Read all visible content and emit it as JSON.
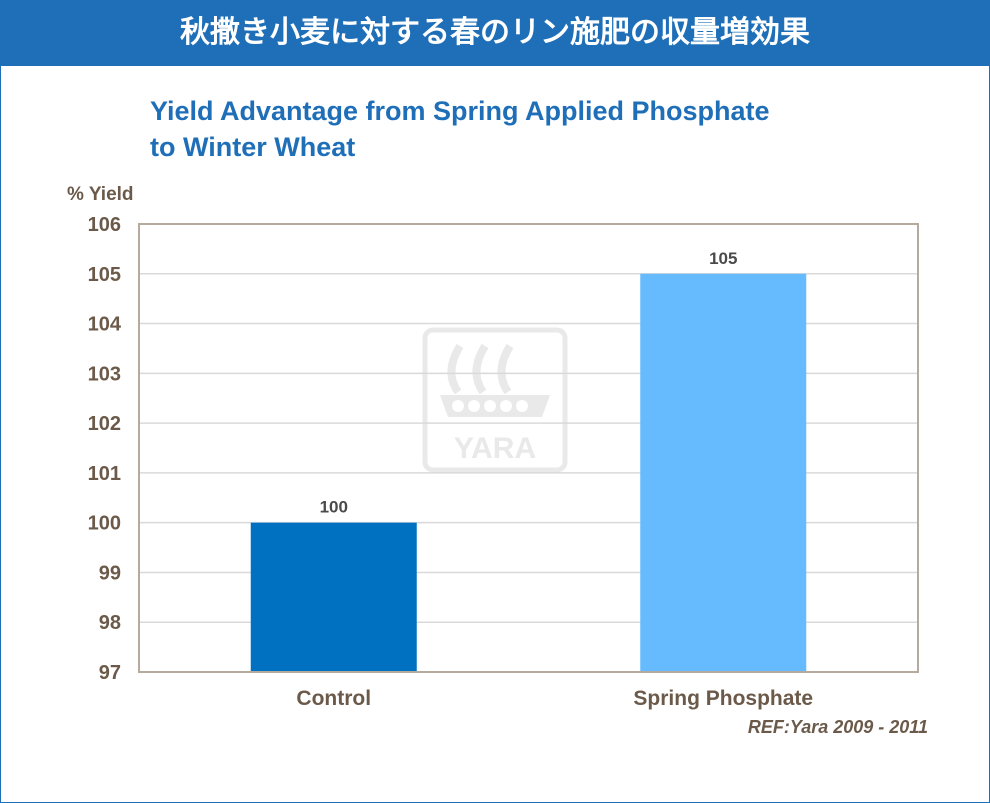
{
  "header": {
    "title": "秋撒き小麦に対する春のリン施肥の収量増効果"
  },
  "chart_data": {
    "type": "bar",
    "title": [
      "Yield Advantage from Spring Applied Phosphate",
      "to Winter Wheat"
    ],
    "ylabel": "% Yield",
    "xlabel": "",
    "categories": [
      "Control",
      "Spring Phosphate"
    ],
    "values": [
      100,
      105
    ],
    "colors": [
      "#0070c0",
      "#66bbff"
    ],
    "ylim": [
      97,
      106
    ],
    "yticks": [
      "106",
      "105",
      "104",
      "103",
      "102",
      "101",
      "100",
      "99",
      "98",
      "97"
    ],
    "grid": true,
    "accent": "#1f6fb8"
  },
  "watermark": {
    "text": "YARA"
  },
  "reference": "REF:Yara 2009 - 2011"
}
